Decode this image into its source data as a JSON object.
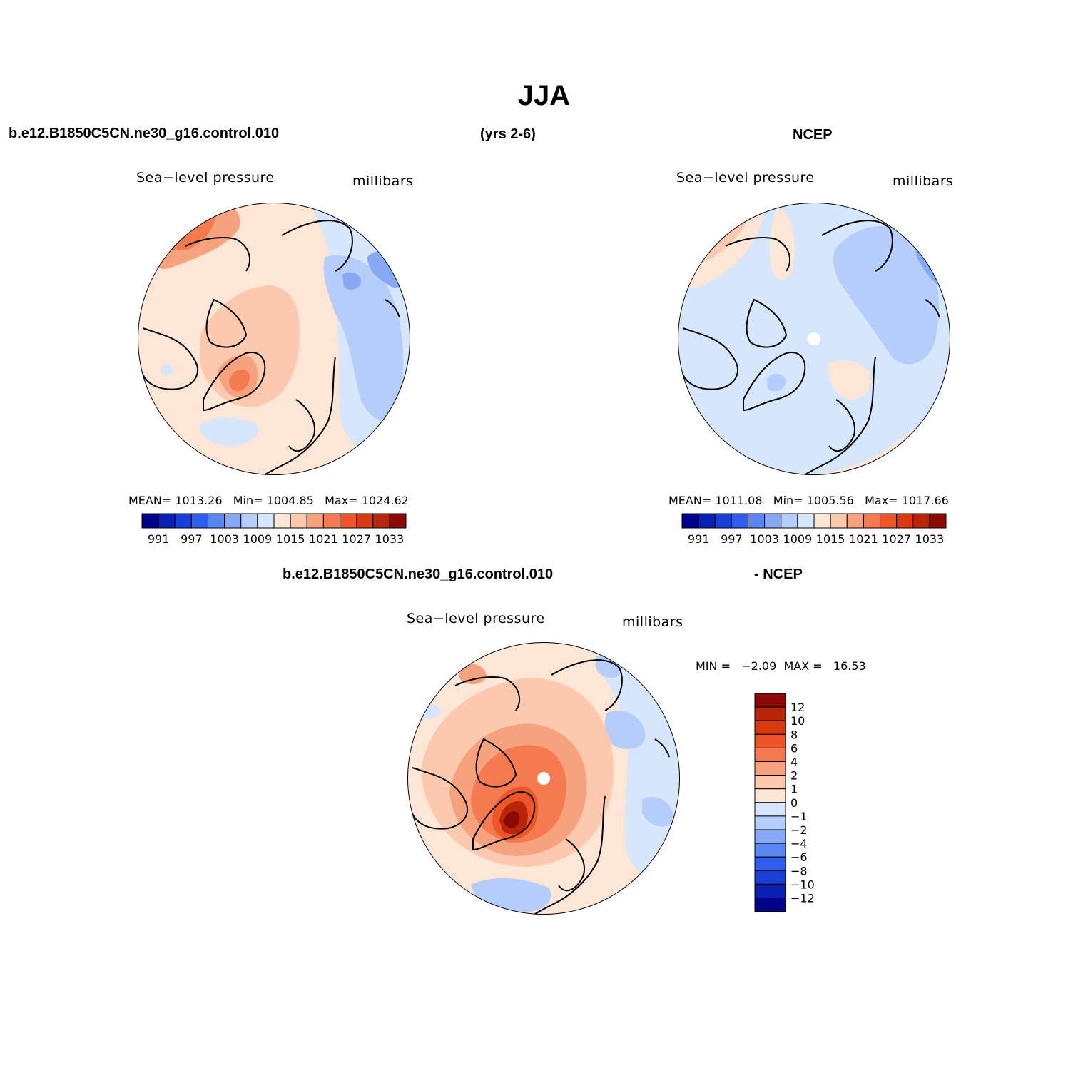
{
  "title": "JJA",
  "header": {
    "case_name": "b.e12.B1850C5CN.ne30_g16.control.010",
    "years": "(yrs 2-6)",
    "obs_name": "NCEP"
  },
  "diff_header": {
    "case_name": "b.e12.B1850C5CN.ne30_g16.control.010",
    "suffix": "- NCEP"
  },
  "colors": {
    "abs_scale": [
      "#00008b",
      "#0a1fb4",
      "#1640d8",
      "#2e5ff0",
      "#5a86f2",
      "#86a8f5",
      "#b4cdfa",
      "#d6e6fc",
      "#fde6d6",
      "#fcc9ae",
      "#f7a27e",
      "#f57a50",
      "#ee5527",
      "#d93a10",
      "#b82508",
      "#8b0a05"
    ],
    "diff_scale": [
      "#00008b",
      "#0a1fb4",
      "#1640d8",
      "#2e5ff0",
      "#5a86f2",
      "#86a8f5",
      "#b4cdfa",
      "#d6e6fc",
      "#fde6d6",
      "#fcc9ae",
      "#f7a27e",
      "#f57a50",
      "#ee5527",
      "#d93a10",
      "#b82508",
      "#8b0a05"
    ]
  },
  "chart_data": [
    {
      "type": "heatmap",
      "id": "model",
      "title": "Sea−level pressure",
      "units": "millibars",
      "stats": {
        "mean_label": "MEAN=",
        "mean": "1013.26",
        "min_label": "Min=",
        "min": "1004.85",
        "max_label": "Max=",
        "max": "1024.62"
      },
      "colorbar": {
        "levels": [
          988,
          991,
          994,
          997,
          1000,
          1003,
          1006,
          1009,
          1012,
          1015,
          1018,
          1021,
          1024,
          1027,
          1030,
          1033
        ],
        "tick_labels": [
          "991",
          "997",
          "1003",
          "1009",
          "1015",
          "1021",
          "1027",
          "1033"
        ]
      }
    },
    {
      "type": "heatmap",
      "id": "obs",
      "title": "Sea−level pressure",
      "units": "millibars",
      "stats": {
        "mean_label": "MEAN=",
        "mean": "1011.08",
        "min_label": "Min=",
        "min": "1005.56",
        "max_label": "Max=",
        "max": "1017.66"
      },
      "colorbar": {
        "levels": [
          988,
          991,
          994,
          997,
          1000,
          1003,
          1006,
          1009,
          1012,
          1015,
          1018,
          1021,
          1024,
          1027,
          1030,
          1033
        ],
        "tick_labels": [
          "991",
          "997",
          "1003",
          "1009",
          "1015",
          "1021",
          "1027",
          "1033"
        ]
      }
    },
    {
      "type": "heatmap",
      "id": "diff",
      "title": "Sea−level pressure",
      "units": "millibars",
      "stats": {
        "min_label": "MIN =",
        "min": "−2.09",
        "max_label": "MAX =",
        "max": "16.53"
      },
      "colorbar": {
        "tick_labels": [
          "12",
          "10",
          "8",
          "6",
          "4",
          "2",
          "1",
          "0",
          "−1",
          "−2",
          "−4",
          "−6",
          "−8",
          "−10",
          "−12"
        ]
      }
    }
  ]
}
